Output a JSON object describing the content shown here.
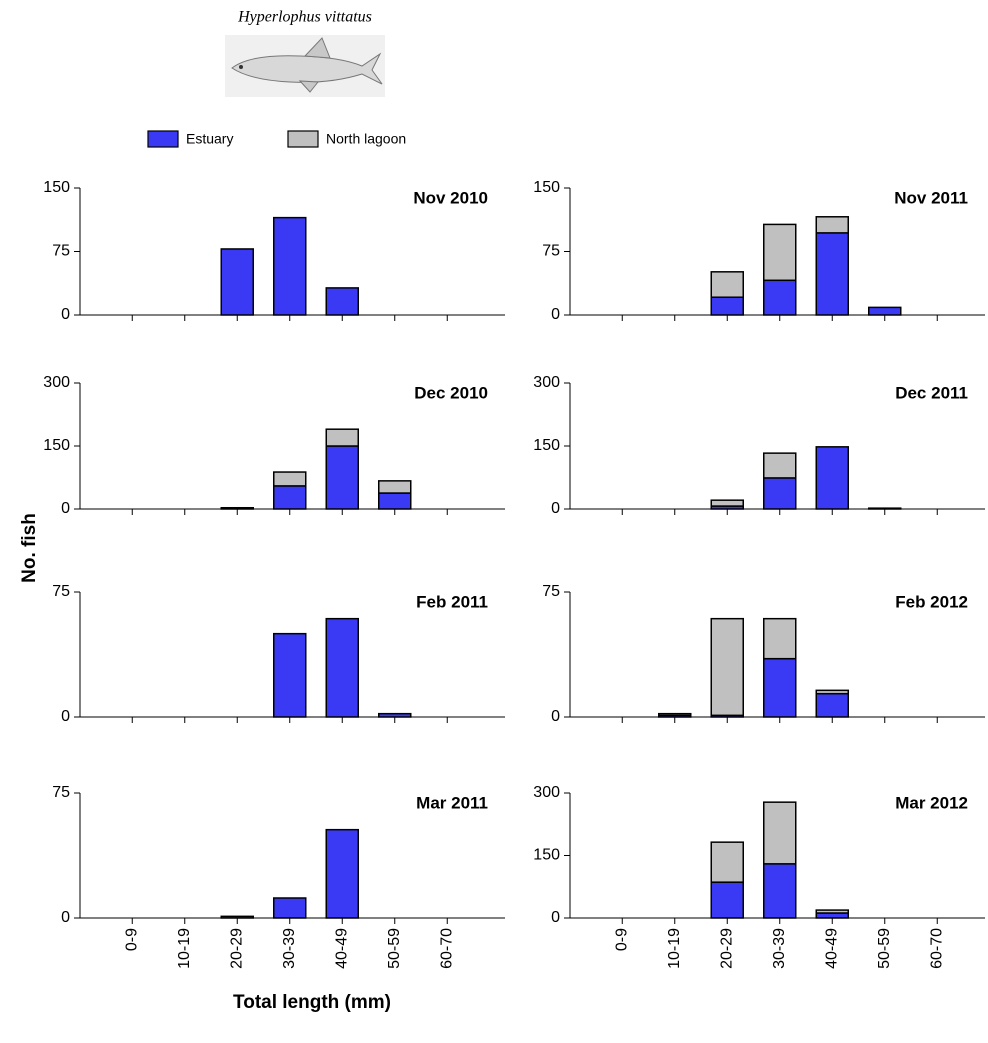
{
  "figure": {
    "species": "Hyperlophus vittatus",
    "y_label": "No. fish",
    "x_label": "Total length (mm)"
  },
  "chart_data": [
    {
      "type": "bar",
      "stacked": true,
      "title": "Nov 2010",
      "categories": [
        "0-9",
        "10-19",
        "20-29",
        "30-39",
        "40-49",
        "50-59",
        "60-70"
      ],
      "series": [
        {
          "name": "Estuary",
          "color": "#3a3af5",
          "values": [
            0,
            0,
            78,
            115,
            32,
            0,
            0
          ]
        },
        {
          "name": "North lagoon",
          "color": "#c0c0c0",
          "values": [
            0,
            0,
            0,
            0,
            0,
            0,
            0
          ]
        }
      ],
      "ylim": [
        0,
        150
      ],
      "yticks": [
        0,
        75,
        150
      ]
    },
    {
      "type": "bar",
      "stacked": true,
      "title": "Nov 2011",
      "categories": [
        "0-9",
        "10-19",
        "20-29",
        "30-39",
        "40-49",
        "50-59",
        "60-70"
      ],
      "series": [
        {
          "name": "Estuary",
          "color": "#3a3af5",
          "values": [
            0,
            0,
            21,
            41,
            97,
            9,
            0
          ]
        },
        {
          "name": "North lagoon",
          "color": "#c0c0c0",
          "values": [
            0,
            0,
            30,
            66,
            19,
            0,
            0
          ]
        }
      ],
      "ylim": [
        0,
        150
      ],
      "yticks": [
        0,
        75,
        150
      ]
    },
    {
      "type": "bar",
      "stacked": true,
      "title": "Dec 2010",
      "categories": [
        "0-9",
        "10-19",
        "20-29",
        "30-39",
        "40-49",
        "50-59",
        "60-70"
      ],
      "series": [
        {
          "name": "Estuary",
          "color": "#3a3af5",
          "values": [
            0,
            0,
            2,
            55,
            150,
            38,
            0
          ]
        },
        {
          "name": "North lagoon",
          "color": "#c0c0c0",
          "values": [
            0,
            0,
            1,
            33,
            40,
            29,
            0
          ]
        }
      ],
      "ylim": [
        0,
        300
      ],
      "yticks": [
        0,
        150,
        300
      ]
    },
    {
      "type": "bar",
      "stacked": true,
      "title": "Dec 2011",
      "categories": [
        "0-9",
        "10-19",
        "20-29",
        "30-39",
        "40-49",
        "50-59",
        "60-70"
      ],
      "series": [
        {
          "name": "Estuary",
          "color": "#3a3af5",
          "values": [
            0,
            0,
            7,
            74,
            148,
            2,
            0
          ]
        },
        {
          "name": "North lagoon",
          "color": "#c0c0c0",
          "values": [
            0,
            0,
            14,
            59,
            0,
            0,
            0
          ]
        }
      ],
      "ylim": [
        0,
        300
      ],
      "yticks": [
        0,
        150,
        300
      ]
    },
    {
      "type": "bar",
      "stacked": true,
      "title": "Feb 2011",
      "categories": [
        "0-9",
        "10-19",
        "20-29",
        "30-39",
        "40-49",
        "50-59",
        "60-70"
      ],
      "series": [
        {
          "name": "Estuary",
          "color": "#3a3af5",
          "values": [
            0,
            0,
            0,
            50,
            59,
            2,
            0
          ]
        },
        {
          "name": "North lagoon",
          "color": "#c0c0c0",
          "values": [
            0,
            0,
            0,
            0,
            0,
            0,
            0
          ]
        }
      ],
      "ylim": [
        0,
        75
      ],
      "yticks": [
        0,
        75
      ]
    },
    {
      "type": "bar",
      "stacked": true,
      "title": "Feb 2012",
      "categories": [
        "0-9",
        "10-19",
        "20-29",
        "30-39",
        "40-49",
        "50-59",
        "60-70"
      ],
      "series": [
        {
          "name": "Estuary",
          "color": "#3a3af5",
          "values": [
            0,
            1,
            1,
            35,
            14,
            0,
            0
          ]
        },
        {
          "name": "North lagoon",
          "color": "#c0c0c0",
          "values": [
            0,
            1,
            58,
            24,
            2,
            0,
            0
          ]
        }
      ],
      "ylim": [
        0,
        75
      ],
      "yticks": [
        0,
        75
      ]
    },
    {
      "type": "bar",
      "stacked": true,
      "title": "Mar 2011",
      "categories": [
        "0-9",
        "10-19",
        "20-29",
        "30-39",
        "40-49",
        "50-59",
        "60-70"
      ],
      "series": [
        {
          "name": "Estuary",
          "color": "#3a3af5",
          "values": [
            0,
            0,
            1,
            12,
            53,
            0,
            0
          ]
        },
        {
          "name": "North lagoon",
          "color": "#c0c0c0",
          "values": [
            0,
            0,
            0,
            0,
            0,
            0,
            0
          ]
        }
      ],
      "ylim": [
        0,
        75
      ],
      "yticks": [
        0,
        75
      ]
    },
    {
      "type": "bar",
      "stacked": true,
      "title": "Mar 2012",
      "categories": [
        "0-9",
        "10-19",
        "20-29",
        "30-39",
        "40-49",
        "50-59",
        "60-70"
      ],
      "series": [
        {
          "name": "Estuary",
          "color": "#3a3af5",
          "values": [
            0,
            0,
            86,
            130,
            12,
            0,
            0
          ]
        },
        {
          "name": "North lagoon",
          "color": "#c0c0c0",
          "values": [
            0,
            0,
            96,
            148,
            7,
            0,
            0
          ]
        }
      ],
      "ylim": [
        0,
        300
      ],
      "yticks": [
        0,
        150,
        300
      ]
    }
  ]
}
